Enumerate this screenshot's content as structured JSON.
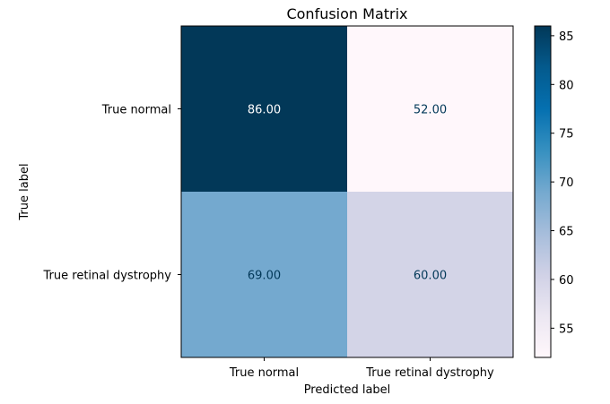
{
  "chart_data": {
    "type": "heatmap",
    "title": "Confusion Matrix",
    "xlabel": "Predicted label",
    "ylabel": "True label",
    "x_categories": [
      "True normal",
      "True retinal dystrophy"
    ],
    "y_categories": [
      "True normal",
      "True retinal dystrophy"
    ],
    "values": [
      [
        86,
        52
      ],
      [
        69,
        60
      ]
    ],
    "cell_labels": [
      [
        "86.00",
        "52.00"
      ],
      [
        "69.00",
        "60.00"
      ]
    ],
    "colormap": "PuBu",
    "colorbar": {
      "min": 52,
      "max": 86,
      "ticks": [
        55,
        60,
        65,
        70,
        75,
        80,
        85
      ],
      "tick_labels": [
        "55",
        "60",
        "65",
        "70",
        "75",
        "80",
        "85"
      ]
    },
    "colors": {
      "low": "#fff7fb",
      "high": "#023858",
      "text_dark": "#023858",
      "text_light": "#ffffff"
    }
  }
}
